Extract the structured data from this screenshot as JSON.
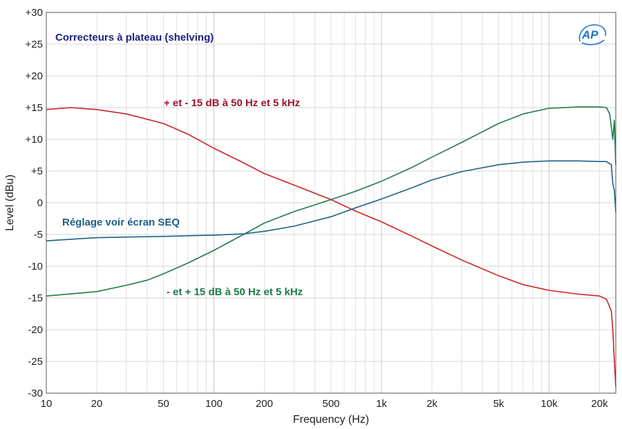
{
  "chart_data": {
    "type": "line",
    "title": "Correcteurs à plateau (shelving)",
    "xlabel": "Frequency (Hz)",
    "ylabel": "Level (dBu)",
    "xscale": "log",
    "xlim": [
      10,
      25000
    ],
    "ylim": [
      -30,
      30
    ],
    "grid": true,
    "x_ticks": [
      {
        "value": 10,
        "label": "10"
      },
      {
        "value": 20,
        "label": "20"
      },
      {
        "value": 50,
        "label": "50"
      },
      {
        "value": 100,
        "label": "100"
      },
      {
        "value": 200,
        "label": "200"
      },
      {
        "value": 500,
        "label": "500"
      },
      {
        "value": 1000,
        "label": "1k"
      },
      {
        "value": 2000,
        "label": "2k"
      },
      {
        "value": 5000,
        "label": "5k"
      },
      {
        "value": 10000,
        "label": "10k"
      },
      {
        "value": 20000,
        "label": "20k"
      }
    ],
    "y_ticks": [
      {
        "value": 30,
        "label": "+30"
      },
      {
        "value": 25,
        "label": "+25"
      },
      {
        "value": 20,
        "label": "+20"
      },
      {
        "value": 15,
        "label": "+15"
      },
      {
        "value": 10,
        "label": "+10"
      },
      {
        "value": 5,
        "label": "+5"
      },
      {
        "value": 0,
        "label": "0"
      },
      {
        "value": -5,
        "label": "-5"
      },
      {
        "value": -10,
        "label": "-10"
      },
      {
        "value": -15,
        "label": "-15"
      },
      {
        "value": -20,
        "label": "-20"
      },
      {
        "value": -25,
        "label": "-25"
      },
      {
        "value": -30,
        "label": "-30"
      }
    ],
    "series": [
      {
        "color": "#cc2222",
        "x": [
          10,
          14,
          20,
          30,
          50,
          70,
          100,
          150,
          200,
          300,
          500,
          700,
          1000,
          1500,
          2000,
          3000,
          5000,
          7000,
          10000,
          15000,
          20000,
          22000,
          23500,
          24000,
          24500,
          25000
        ],
        "y": [
          14.7,
          15.0,
          14.7,
          14.0,
          12.5,
          10.8,
          8.6,
          6.3,
          4.6,
          2.8,
          0.5,
          -1.3,
          -3.0,
          -5.2,
          -6.8,
          -9.0,
          -11.5,
          -12.9,
          -13.8,
          -14.4,
          -14.7,
          -15.2,
          -17.0,
          -20.0,
          -25.0,
          -29.0
        ]
      },
      {
        "color": "#1f7a4a",
        "x": [
          10,
          20,
          30,
          40,
          50,
          70,
          100,
          150,
          200,
          300,
          500,
          700,
          1000,
          1500,
          2000,
          3000,
          5000,
          7000,
          10000,
          15000,
          20000,
          22000,
          23000,
          23500,
          24000,
          24500,
          25000
        ],
        "y": [
          -14.7,
          -14.0,
          -13.0,
          -12.2,
          -11.2,
          -9.5,
          -7.5,
          -5.0,
          -3.2,
          -1.4,
          0.5,
          1.8,
          3.4,
          5.5,
          7.2,
          9.5,
          12.5,
          14.0,
          14.9,
          15.1,
          15.1,
          15.0,
          14.0,
          12.0,
          10.0,
          13.0,
          6.0
        ]
      },
      {
        "color": "#1d5f86",
        "x": [
          10,
          20,
          30,
          50,
          70,
          100,
          150,
          200,
          300,
          500,
          700,
          1000,
          1500,
          2000,
          3000,
          5000,
          7000,
          10000,
          15000,
          20000,
          22000,
          23500,
          24000,
          24500,
          25000
        ],
        "y": [
          -6.0,
          -5.5,
          -5.4,
          -5.3,
          -5.2,
          -5.1,
          -4.9,
          -4.5,
          -3.7,
          -2.2,
          -0.8,
          0.6,
          2.3,
          3.6,
          4.9,
          6.0,
          6.4,
          6.6,
          6.6,
          6.5,
          6.5,
          6.0,
          3.0,
          2.0,
          -1.5
        ]
      }
    ],
    "annotations": [
      {
        "text": "+ et - 15 dB à 50 Hz et 5 kHz",
        "color": "#a01530"
      },
      {
        "text": "- et + 15 dB à 50 Hz et 5 kHz",
        "color": "#1f7a4a"
      },
      {
        "text": "Réglage voir écran SEQ",
        "color": "#1d5f86"
      }
    ],
    "title_color": "#1a237e"
  },
  "logo": {
    "text": "AP",
    "color": "#1a73c8"
  }
}
